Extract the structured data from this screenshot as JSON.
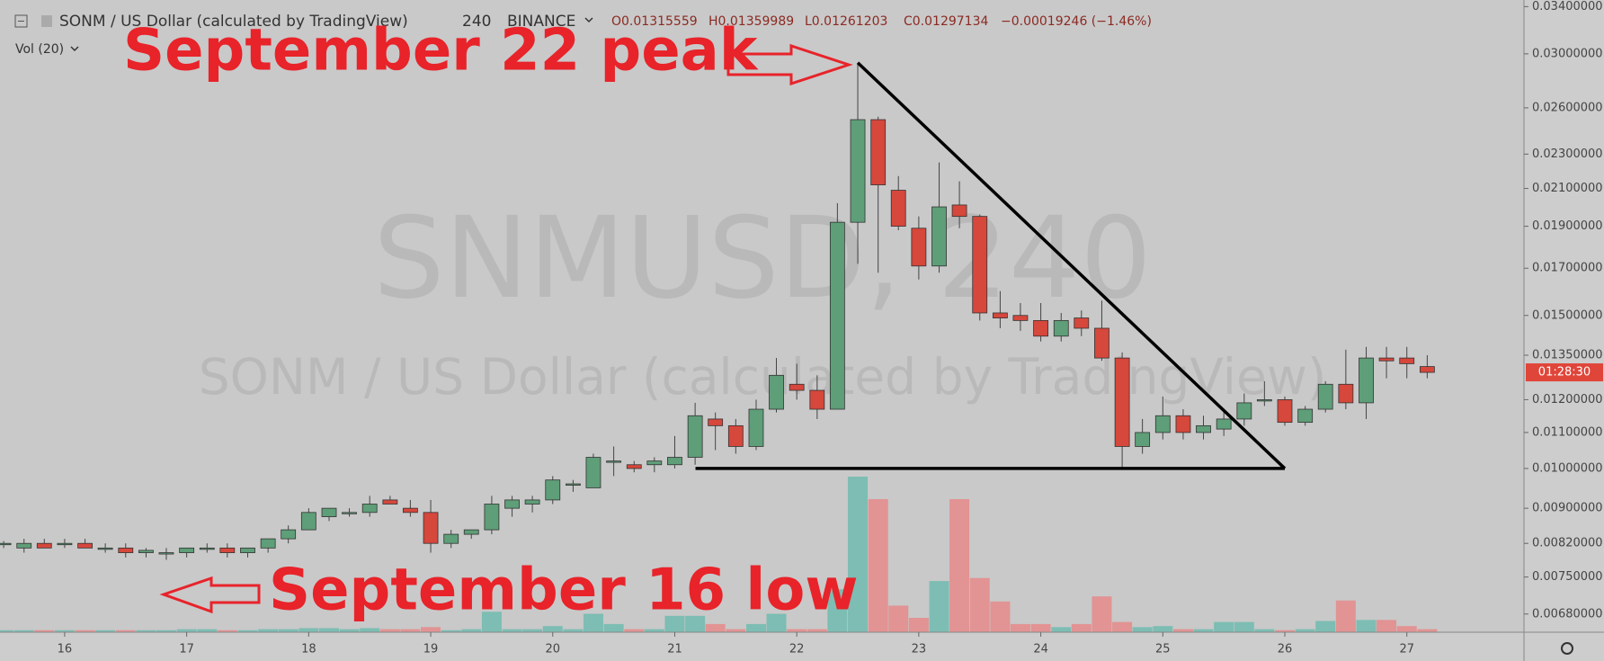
{
  "chart_data": {
    "type": "candlestick",
    "title": "SONM / US Dollar (calculated by TradingView)",
    "interval": "240",
    "exchange": "BINANCE",
    "ohlc_legend": [
      "O0.01315559",
      "H0.01359989",
      "L0.01261203",
      "C0.01297134"
    ],
    "change": "−0.00019246 (−1.46%)",
    "volume_label": "Vol (20)",
    "watermark": "SNMUSD, 240",
    "countdown": "01:28:30",
    "up_color": "#5e9e78",
    "down_color": "#d6473c",
    "volume_up_color": "#7dbdb3",
    "volume_down_color": "#e29393",
    "log_scale": true,
    "xlim": [
      15.47,
      27.96
    ],
    "xticks": [
      16,
      17,
      18,
      19,
      20,
      21,
      22,
      23,
      24,
      25,
      26,
      27
    ],
    "ylim": [
      0.00648,
      0.0346
    ],
    "yticks": [
      {
        "value": 0.034,
        "label": "0.03400000"
      },
      {
        "value": 0.03,
        "label": "0.03000000"
      },
      {
        "value": 0.026,
        "label": "0.02600000"
      },
      {
        "value": 0.023,
        "label": "0.02300000"
      },
      {
        "value": 0.021,
        "label": "0.02100000"
      },
      {
        "value": 0.019,
        "label": "0.01900000"
      },
      {
        "value": 0.017,
        "label": "0.01700000"
      },
      {
        "value": 0.015,
        "label": "0.01500000"
      },
      {
        "value": 0.0135,
        "label": "0.01350000"
      },
      {
        "value": 0.012,
        "label": "0.01200000"
      },
      {
        "value": 0.011,
        "label": "0.01100000"
      },
      {
        "value": 0.01,
        "label": "0.01000000"
      },
      {
        "value": 0.009,
        "label": "0.00900000"
      },
      {
        "value": 0.0082,
        "label": "0.00820000"
      },
      {
        "value": 0.0075,
        "label": "0.00750000"
      },
      {
        "value": 0.0068,
        "label": "0.00680000"
      }
    ],
    "x": [
      15.5,
      15.667,
      15.833,
      16,
      16.167,
      16.333,
      16.5,
      16.667,
      16.833,
      17,
      17.167,
      17.333,
      17.5,
      17.667,
      17.833,
      18,
      18.167,
      18.333,
      18.5,
      18.667,
      18.833,
      19,
      19.167,
      19.333,
      19.5,
      19.667,
      19.833,
      20,
      20.167,
      20.333,
      20.5,
      20.667,
      20.833,
      21,
      21.167,
      21.333,
      21.5,
      21.667,
      21.833,
      22,
      22.167,
      22.333,
      22.5,
      22.667,
      22.833,
      23,
      23.167,
      23.333,
      23.5,
      23.667,
      23.833,
      24,
      24.167,
      24.333,
      24.5,
      24.667,
      24.833,
      25,
      25.167,
      25.333,
      25.5,
      25.667,
      25.833,
      26,
      26.167,
      26.333,
      26.5,
      26.667,
      26.833,
      27,
      27.167
    ],
    "open": [
      0.0082,
      0.0081,
      0.0082,
      0.0082,
      0.0082,
      0.0081,
      0.0081,
      0.008,
      0.008,
      0.008,
      0.0081,
      0.0081,
      0.008,
      0.0081,
      0.0083,
      0.0085,
      0.0088,
      0.0089,
      0.0089,
      0.0092,
      0.009,
      0.0089,
      0.0082,
      0.0084,
      0.0085,
      0.009,
      0.0091,
      0.0092,
      0.0096,
      0.0095,
      0.0102,
      0.0101,
      0.0101,
      0.0101,
      0.0103,
      0.0114,
      0.0112,
      0.0106,
      0.0117,
      0.0125,
      0.0123,
      0.0117,
      0.0192,
      0.0252,
      0.0209,
      0.0189,
      0.0171,
      0.0201,
      0.0195,
      0.0151,
      0.015,
      0.0148,
      0.0142,
      0.0149,
      0.0145,
      0.0134,
      0.0106,
      0.011,
      0.0115,
      0.011,
      0.0111,
      0.0114,
      0.012,
      0.012,
      0.0113,
      0.0117,
      0.0125,
      0.0119,
      0.0134,
      0.0134,
      0.0131
    ],
    "high": [
      0.00825,
      0.0083,
      0.0083,
      0.0083,
      0.0083,
      0.0082,
      0.0082,
      0.0081,
      0.0081,
      0.0081,
      0.0082,
      0.0082,
      0.0081,
      0.0083,
      0.0086,
      0.009,
      0.009,
      0.009,
      0.0093,
      0.0093,
      0.0092,
      0.0092,
      0.0085,
      0.0085,
      0.0093,
      0.0093,
      0.0093,
      0.0098,
      0.0097,
      0.0104,
      0.0106,
      0.0102,
      0.0103,
      0.0109,
      0.0119,
      0.0116,
      0.0114,
      0.012,
      0.0134,
      0.0132,
      0.0128,
      0.0202,
      0.0292,
      0.0254,
      0.0217,
      0.0195,
      0.0225,
      0.0214,
      0.0196,
      0.016,
      0.0155,
      0.0155,
      0.0151,
      0.0152,
      0.0156,
      0.0136,
      0.0114,
      0.0121,
      0.0117,
      0.0115,
      0.0116,
      0.0122,
      0.0126,
      0.0121,
      0.0118,
      0.0126,
      0.0137,
      0.0138,
      0.0138,
      0.0138,
      0.0135
    ],
    "low": [
      0.0081,
      0.008,
      0.0081,
      0.0081,
      0.0081,
      0.008,
      0.0079,
      0.0079,
      0.00785,
      0.0079,
      0.008,
      0.0079,
      0.0079,
      0.008,
      0.0082,
      0.0085,
      0.0087,
      0.0088,
      0.0088,
      0.0091,
      0.0088,
      0.008,
      0.0081,
      0.0083,
      0.0084,
      0.0088,
      0.0089,
      0.0091,
      0.0094,
      0.0095,
      0.0098,
      0.0099,
      0.0099,
      0.01,
      0.0101,
      0.0105,
      0.0104,
      0.0105,
      0.0116,
      0.012,
      0.0114,
      0.0117,
      0.0172,
      0.0168,
      0.0188,
      0.0165,
      0.0168,
      0.0189,
      0.0148,
      0.0145,
      0.0144,
      0.014,
      0.014,
      0.0142,
      0.0133,
      0.01,
      0.0104,
      0.0108,
      0.0108,
      0.0108,
      0.0109,
      0.0112,
      0.0118,
      0.0112,
      0.0112,
      0.0116,
      0.0117,
      0.0114,
      0.0127,
      0.0127,
      0.0127
    ],
    "close": [
      0.0082,
      0.0082,
      0.0081,
      0.0082,
      0.0081,
      0.0081,
      0.008,
      0.00805,
      0.008,
      0.0081,
      0.0081,
      0.008,
      0.0081,
      0.0083,
      0.0085,
      0.0089,
      0.009,
      0.0089,
      0.0091,
      0.0091,
      0.0089,
      0.0082,
      0.0084,
      0.0085,
      0.0091,
      0.0092,
      0.0092,
      0.0097,
      0.0096,
      0.0103,
      0.0102,
      0.01,
      0.0102,
      0.0103,
      0.0115,
      0.0112,
      0.0106,
      0.0117,
      0.0128,
      0.0123,
      0.0117,
      0.0192,
      0.0252,
      0.0212,
      0.019,
      0.0171,
      0.02,
      0.0195,
      0.0151,
      0.0149,
      0.0148,
      0.0142,
      0.0148,
      0.0145,
      0.0134,
      0.0106,
      0.011,
      0.0115,
      0.011,
      0.0112,
      0.0114,
      0.0119,
      0.012,
      0.0113,
      0.0117,
      0.0125,
      0.0119,
      0.0134,
      0.0133,
      0.0132,
      0.0129
    ],
    "volume": [
      2,
      2,
      2,
      2,
      2,
      2,
      2,
      2,
      2,
      3,
      3,
      2,
      2,
      3,
      3,
      4,
      4,
      3,
      4,
      3,
      3,
      5,
      2,
      3,
      20,
      3,
      3,
      6,
      3,
      18,
      8,
      3,
      3,
      16,
      16,
      8,
      3,
      8,
      18,
      3,
      3,
      42,
      152,
      130,
      26,
      14,
      50,
      130,
      53,
      30,
      8,
      8,
      5,
      8,
      35,
      10,
      5,
      6,
      3,
      3,
      10,
      10,
      3,
      2,
      3,
      11,
      31,
      12,
      12,
      6,
      3
    ],
    "trendlines": [
      {
        "points": [
          [
            22.5,
            0.0293
          ],
          [
            26,
            0.01
          ]
        ]
      },
      {
        "points": [
          [
            21.17,
            0.01
          ],
          [
            26,
            0.01
          ]
        ]
      }
    ],
    "annotations": [
      {
        "text": "September 22 peak"
      },
      {
        "text": "September 16 low"
      }
    ]
  }
}
